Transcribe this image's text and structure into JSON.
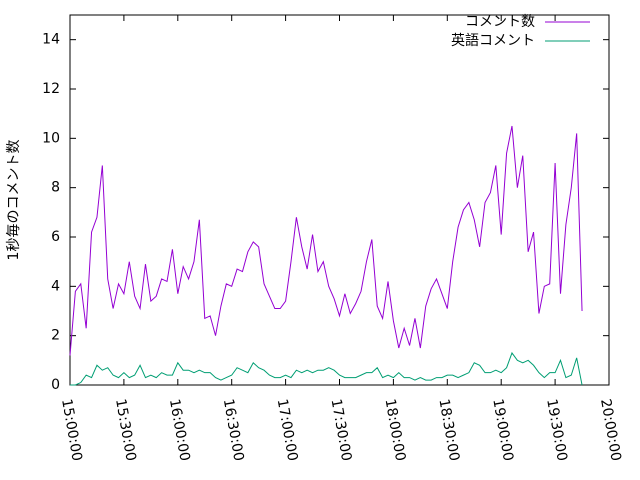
{
  "chart_data": {
    "type": "line",
    "y_label": "1秒毎のコメント数",
    "x": [
      "15:00:00",
      "15:03:00",
      "15:06:00",
      "15:09:00",
      "15:12:00",
      "15:15:00",
      "15:18:00",
      "15:21:00",
      "15:24:00",
      "15:27:00",
      "15:30:00",
      "15:33:00",
      "15:36:00",
      "15:39:00",
      "15:42:00",
      "15:45:00",
      "15:48:00",
      "15:51:00",
      "15:54:00",
      "15:57:00",
      "16:00:00",
      "16:03:00",
      "16:06:00",
      "16:09:00",
      "16:12:00",
      "16:15:00",
      "16:18:00",
      "16:21:00",
      "16:24:00",
      "16:27:00",
      "16:30:00",
      "16:33:00",
      "16:36:00",
      "16:39:00",
      "16:42:00",
      "16:45:00",
      "16:48:00",
      "16:51:00",
      "16:54:00",
      "16:57:00",
      "17:00:00",
      "17:03:00",
      "17:06:00",
      "17:09:00",
      "17:12:00",
      "17:15:00",
      "17:18:00",
      "17:21:00",
      "17:24:00",
      "17:27:00",
      "17:30:00",
      "17:33:00",
      "17:36:00",
      "17:39:00",
      "17:42:00",
      "17:45:00",
      "17:48:00",
      "17:51:00",
      "17:54:00",
      "17:57:00",
      "18:00:00",
      "18:03:00",
      "18:06:00",
      "18:09:00",
      "18:12:00",
      "18:15:00",
      "18:18:00",
      "18:21:00",
      "18:24:00",
      "18:27:00",
      "18:30:00",
      "18:33:00",
      "18:36:00",
      "18:39:00",
      "18:42:00",
      "18:45:00",
      "18:48:00",
      "18:51:00",
      "18:54:00",
      "18:57:00",
      "19:00:00",
      "19:03:00",
      "19:06:00",
      "19:09:00",
      "19:12:00",
      "19:15:00",
      "19:18:00",
      "19:21:00",
      "19:24:00",
      "19:27:00",
      "19:30:00",
      "19:33:00",
      "19:36:00",
      "19:39:00",
      "19:42:00",
      "19:45:00"
    ],
    "series": [
      {
        "name": "コメント数",
        "color": "#9400d3",
        "values": [
          1.2,
          3.8,
          4.1,
          2.3,
          6.2,
          6.8,
          8.9,
          4.3,
          3.1,
          4.1,
          3.7,
          5.0,
          3.6,
          3.1,
          4.9,
          3.4,
          3.6,
          4.3,
          4.2,
          5.5,
          3.7,
          4.8,
          4.3,
          5.0,
          6.7,
          2.7,
          2.8,
          2.0,
          3.2,
          4.1,
          4.0,
          4.7,
          4.6,
          5.4,
          5.8,
          5.6,
          4.1,
          3.6,
          3.1,
          3.1,
          3.4,
          5.0,
          6.8,
          5.6,
          4.7,
          6.1,
          4.6,
          5.0,
          4.0,
          3.5,
          2.8,
          3.7,
          2.9,
          3.3,
          3.8,
          5.0,
          5.9,
          3.2,
          2.7,
          4.2,
          2.6,
          1.5,
          2.3,
          1.6,
          2.7,
          1.5,
          3.2,
          3.9,
          4.3,
          3.7,
          3.1,
          5.0,
          6.4,
          7.1,
          7.4,
          6.7,
          5.6,
          7.4,
          7.8,
          8.9,
          6.1,
          9.4,
          10.5,
          8.0,
          9.3,
          5.4,
          6.2,
          2.9,
          4.0,
          4.1,
          9.0,
          3.7,
          6.5,
          8.0,
          10.2,
          3.0
        ]
      },
      {
        "name": "英語コメント",
        "color": "#009e73",
        "values": [
          0,
          0,
          0.1,
          0.4,
          0.3,
          0.8,
          0.6,
          0.7,
          0.4,
          0.3,
          0.5,
          0.3,
          0.4,
          0.8,
          0.3,
          0.4,
          0.3,
          0.5,
          0.4,
          0.4,
          0.9,
          0.6,
          0.6,
          0.5,
          0.6,
          0.5,
          0.5,
          0.3,
          0.2,
          0.3,
          0.4,
          0.7,
          0.6,
          0.5,
          0.9,
          0.7,
          0.6,
          0.4,
          0.3,
          0.3,
          0.4,
          0.3,
          0.6,
          0.5,
          0.6,
          0.5,
          0.6,
          0.6,
          0.7,
          0.6,
          0.4,
          0.3,
          0.3,
          0.3,
          0.4,
          0.5,
          0.5,
          0.7,
          0.3,
          0.4,
          0.3,
          0.5,
          0.3,
          0.3,
          0.2,
          0.3,
          0.2,
          0.2,
          0.3,
          0.3,
          0.4,
          0.4,
          0.3,
          0.4,
          0.5,
          0.9,
          0.8,
          0.5,
          0.5,
          0.6,
          0.5,
          0.7,
          1.3,
          1.0,
          0.9,
          1.0,
          0.8,
          0.5,
          0.3,
          0.5,
          0.5,
          1.0,
          0.3,
          0.4,
          1.1,
          0.0
        ]
      }
    ],
    "xlim": [
      "15:00:00",
      "20:00:00"
    ],
    "xticks": [
      "15:00:00",
      "15:30:00",
      "16:00:00",
      "16:30:00",
      "17:00:00",
      "17:30:00",
      "18:00:00",
      "18:30:00",
      "19:00:00",
      "19:30:00",
      "20:00:00"
    ],
    "ylim": [
      0,
      15
    ],
    "yticks": [
      0,
      2,
      4,
      6,
      8,
      10,
      12,
      14
    ],
    "legend": "top-right"
  }
}
